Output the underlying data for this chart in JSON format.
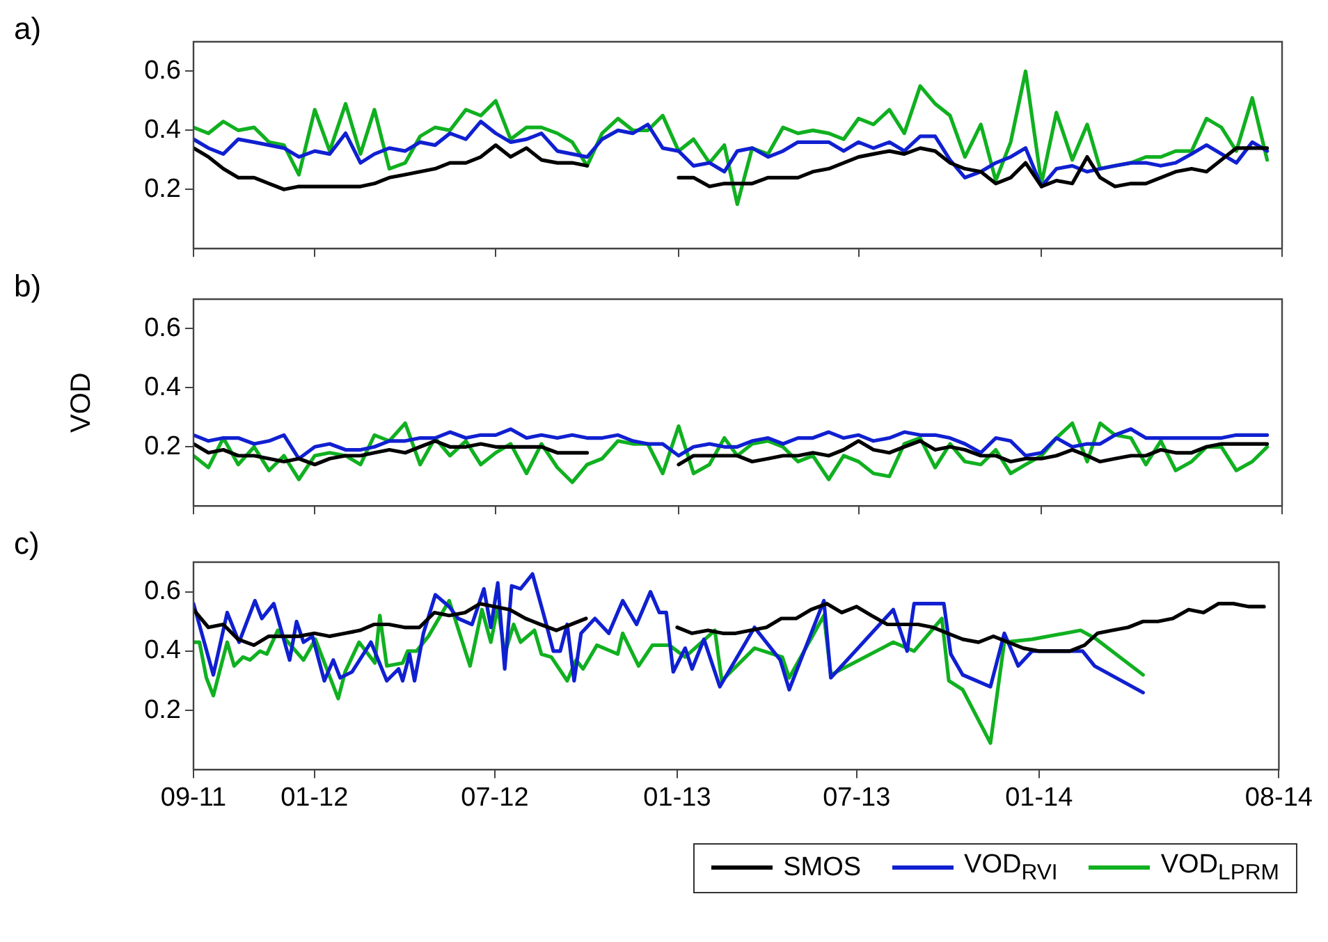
{
  "chart_data": [
    {
      "type": "line",
      "title": "a)",
      "x": [
        "2011-09-01",
        "2011-09-16",
        "2011-10-01",
        "2011-10-16",
        "2011-11-01",
        "2011-11-16",
        "2011-12-01",
        "2011-12-16",
        "2012-01-01",
        "2012-01-16",
        "2012-02-01",
        "2012-02-16",
        "2012-03-01",
        "2012-03-16",
        "2012-04-01",
        "2012-04-16",
        "2012-05-01",
        "2012-05-16",
        "2012-06-01",
        "2012-06-16",
        "2012-07-01",
        "2012-07-16",
        "2012-08-01",
        "2012-08-16",
        "2012-09-01",
        "2012-09-16",
        "2012-10-01",
        "2012-10-16",
        "2012-11-01",
        "2012-11-16",
        "2012-12-01",
        "2012-12-16",
        "2013-01-01",
        "2013-01-16",
        "2013-02-01",
        "2013-02-16",
        "2013-03-01",
        "2013-03-16",
        "2013-04-01",
        "2013-04-16",
        "2013-05-01",
        "2013-05-16",
        "2013-06-01",
        "2013-06-16",
        "2013-07-01",
        "2013-07-16",
        "2013-08-01",
        "2013-08-16",
        "2013-09-01",
        "2013-09-16",
        "2013-10-01",
        "2013-10-16",
        "2013-11-01",
        "2013-11-16",
        "2013-12-01",
        "2013-12-16",
        "2014-01-01",
        "2014-01-16",
        "2014-02-01",
        "2014-02-16",
        "2014-03-01",
        "2014-03-16",
        "2014-04-01",
        "2014-04-16",
        "2014-05-01",
        "2014-05-16",
        "2014-06-01",
        "2014-06-16",
        "2014-07-01",
        "2014-07-16",
        "2014-08-01",
        "2014-08-16"
      ],
      "series": [
        {
          "color": "#000000",
          "values": [
            0.34,
            0.31,
            0.27,
            0.24,
            0.24,
            0.22,
            0.2,
            0.21,
            0.21,
            0.21,
            0.21,
            0.21,
            0.22,
            0.24,
            0.25,
            0.26,
            0.27,
            0.29,
            0.29,
            0.31,
            0.35,
            0.31,
            0.34,
            0.3,
            0.29,
            0.29,
            0.28,
            null,
            null,
            null,
            null,
            null,
            0.24,
            0.24,
            0.21,
            0.22,
            0.22,
            0.22,
            0.24,
            0.24,
            0.24,
            0.26,
            0.27,
            0.29,
            0.31,
            0.32,
            0.33,
            0.32,
            0.34,
            0.33,
            0.29,
            0.27,
            0.26,
            0.22,
            0.24,
            0.29,
            0.21,
            0.23,
            0.22,
            0.31,
            0.24,
            0.21,
            0.22,
            0.22,
            0.24,
            0.26,
            0.27,
            0.26,
            0.3,
            0.34,
            0.34,
            0.34
          ]
        },
        {
          "color": "#1020d0",
          "values": [
            0.37,
            0.34,
            0.32,
            0.37,
            0.36,
            0.35,
            0.34,
            0.31,
            0.33,
            0.32,
            0.39,
            0.29,
            0.32,
            0.34,
            0.33,
            0.36,
            0.35,
            0.39,
            0.37,
            0.43,
            0.39,
            0.36,
            0.37,
            0.39,
            0.33,
            0.32,
            0.31,
            0.37,
            0.4,
            0.39,
            0.42,
            0.34,
            0.33,
            0.28,
            0.29,
            0.26,
            0.33,
            0.34,
            0.31,
            0.33,
            0.36,
            0.36,
            0.36,
            0.33,
            0.36,
            0.34,
            0.36,
            0.33,
            0.38,
            0.38,
            0.3,
            0.24,
            0.26,
            0.29,
            0.31,
            0.34,
            0.21,
            0.27,
            0.28,
            0.26,
            0.27,
            0.28,
            0.29,
            0.29,
            0.28,
            0.29,
            0.32,
            0.35,
            0.32,
            0.29,
            0.36,
            0.33
          ]
        },
        {
          "color": "#10b020",
          "values": [
            0.41,
            0.39,
            0.43,
            0.4,
            0.41,
            0.36,
            0.35,
            0.25,
            0.47,
            0.33,
            0.49,
            0.32,
            0.47,
            0.27,
            0.29,
            0.38,
            0.41,
            0.4,
            0.47,
            0.45,
            0.5,
            0.37,
            0.41,
            0.41,
            0.39,
            0.36,
            0.28,
            0.39,
            0.44,
            0.4,
            0.4,
            0.45,
            0.33,
            0.37,
            0.29,
            0.35,
            0.15,
            0.34,
            0.32,
            0.41,
            0.39,
            0.4,
            0.39,
            0.37,
            0.44,
            0.42,
            0.47,
            0.39,
            0.55,
            0.49,
            0.45,
            0.31,
            0.42,
            0.23,
            0.36,
            0.6,
            0.22,
            0.46,
            0.3,
            0.42,
            0.27,
            0.28,
            0.29,
            0.31,
            0.31,
            0.33,
            0.33,
            0.44,
            0.41,
            0.33,
            0.51,
            0.3
          ]
        }
      ],
      "xlim": [
        "2011-09-01",
        "2014-08-31"
      ],
      "xticks": [
        {
          "value": "2011-09-01",
          "label": null
        },
        {
          "value": "2012-01-01",
          "label": null
        },
        {
          "value": "2012-07-01",
          "label": null
        },
        {
          "value": "2013-01-01",
          "label": null
        },
        {
          "value": "2013-07-01",
          "label": null
        },
        {
          "value": "2014-01-01",
          "label": null
        },
        {
          "value": "2014-08-31",
          "label": null
        }
      ],
      "ylim": [
        0,
        0.7
      ],
      "yticks": [
        0.2,
        0.4,
        0.6
      ],
      "tick_labels": "y"
    },
    {
      "type": "line",
      "title": "b)",
      "ylabel": "VOD",
      "x": [
        "2011-09-01",
        "2011-09-16",
        "2011-10-01",
        "2011-10-16",
        "2011-11-01",
        "2011-11-16",
        "2011-12-01",
        "2011-12-16",
        "2012-01-01",
        "2012-01-16",
        "2012-02-01",
        "2012-02-16",
        "2012-03-01",
        "2012-03-16",
        "2012-04-01",
        "2012-04-16",
        "2012-05-01",
        "2012-05-16",
        "2012-06-01",
        "2012-06-16",
        "2012-07-01",
        "2012-07-16",
        "2012-08-01",
        "2012-08-16",
        "2012-09-01",
        "2012-09-16",
        "2012-10-01",
        "2012-10-16",
        "2012-11-01",
        "2012-11-16",
        "2012-12-01",
        "2012-12-16",
        "2013-01-01",
        "2013-01-16",
        "2013-02-01",
        "2013-02-16",
        "2013-03-01",
        "2013-03-16",
        "2013-04-01",
        "2013-04-16",
        "2013-05-01",
        "2013-05-16",
        "2013-06-01",
        "2013-06-16",
        "2013-07-01",
        "2013-07-16",
        "2013-08-01",
        "2013-08-16",
        "2013-09-01",
        "2013-09-16",
        "2013-10-01",
        "2013-10-16",
        "2013-11-01",
        "2013-11-16",
        "2013-12-01",
        "2013-12-16",
        "2014-01-01",
        "2014-01-16",
        "2014-02-01",
        "2014-02-16",
        "2014-03-01",
        "2014-03-16",
        "2014-04-01",
        "2014-04-16",
        "2014-05-01",
        "2014-05-16",
        "2014-06-01",
        "2014-06-16",
        "2014-07-01",
        "2014-07-16",
        "2014-08-01",
        "2014-08-16"
      ],
      "series": [
        {
          "color": "#000000",
          "values": [
            0.21,
            0.18,
            0.19,
            0.17,
            0.17,
            0.16,
            0.15,
            0.16,
            0.14,
            0.16,
            0.17,
            0.17,
            0.18,
            0.19,
            0.18,
            0.2,
            0.22,
            0.2,
            0.2,
            0.21,
            0.2,
            0.2,
            0.2,
            0.2,
            0.18,
            0.18,
            0.18,
            null,
            null,
            null,
            null,
            null,
            0.14,
            0.17,
            0.17,
            0.17,
            0.17,
            0.15,
            0.16,
            0.17,
            0.17,
            0.18,
            0.17,
            0.19,
            0.22,
            0.19,
            0.18,
            0.2,
            0.22,
            0.19,
            0.2,
            0.19,
            0.17,
            0.17,
            0.15,
            0.16,
            0.16,
            0.17,
            0.19,
            0.17,
            0.15,
            0.16,
            0.17,
            0.17,
            0.19,
            0.18,
            0.18,
            0.2,
            0.21,
            0.21,
            0.21,
            0.21
          ]
        },
        {
          "color": "#1020d0",
          "values": [
            0.24,
            0.22,
            0.23,
            0.23,
            0.21,
            0.22,
            0.24,
            0.16,
            0.2,
            0.21,
            0.19,
            0.19,
            0.2,
            0.22,
            0.22,
            0.23,
            0.23,
            0.25,
            0.23,
            0.24,
            0.24,
            0.26,
            0.23,
            0.24,
            0.23,
            0.24,
            0.23,
            0.23,
            0.24,
            0.22,
            0.21,
            0.21,
            0.17,
            0.2,
            0.21,
            0.2,
            0.2,
            0.22,
            0.23,
            0.21,
            0.23,
            0.23,
            0.25,
            0.23,
            0.24,
            0.22,
            0.23,
            0.25,
            0.24,
            0.24,
            0.23,
            0.21,
            0.18,
            0.23,
            0.22,
            0.17,
            0.18,
            0.23,
            0.2,
            0.21,
            0.21,
            0.24,
            0.26,
            0.23,
            0.23,
            0.23,
            0.23,
            0.23,
            0.23,
            0.24,
            0.24,
            0.24
          ]
        },
        {
          "color": "#10b020",
          "values": [
            0.17,
            0.13,
            0.23,
            0.14,
            0.2,
            0.12,
            0.17,
            0.09,
            0.17,
            0.18,
            0.17,
            0.14,
            0.24,
            0.22,
            0.28,
            0.14,
            0.23,
            0.17,
            0.22,
            0.14,
            0.18,
            0.21,
            0.11,
            0.21,
            0.13,
            0.08,
            0.14,
            0.16,
            0.22,
            0.21,
            0.21,
            0.11,
            0.27,
            0.11,
            0.14,
            0.23,
            0.17,
            0.21,
            0.22,
            0.2,
            0.15,
            0.17,
            0.09,
            0.17,
            0.15,
            0.11,
            0.1,
            0.21,
            0.23,
            0.13,
            0.21,
            0.15,
            0.14,
            0.19,
            0.11,
            0.14,
            0.17,
            0.23,
            0.28,
            0.15,
            0.28,
            0.24,
            0.23,
            0.14,
            0.22,
            0.12,
            0.15,
            0.2,
            0.2,
            0.12,
            0.15,
            0.2
          ]
        }
      ],
      "xlim": [
        "2011-09-01",
        "2014-08-31"
      ],
      "xticks": [
        {
          "value": "2011-09-01",
          "label": null
        },
        {
          "value": "2012-01-01",
          "label": null
        },
        {
          "value": "2012-07-01",
          "label": null
        },
        {
          "value": "2013-01-01",
          "label": null
        },
        {
          "value": "2013-07-01",
          "label": null
        },
        {
          "value": "2014-01-01",
          "label": null
        },
        {
          "value": "2014-08-31",
          "label": null
        }
      ],
      "ylim": [
        0,
        0.7
      ],
      "yticks": [
        0.2,
        0.4,
        0.6
      ],
      "tick_labels": "y"
    },
    {
      "type": "line",
      "title": "c)",
      "x": [
        "2011-09-01",
        "2011-09-16",
        "2011-10-01",
        "2011-10-16",
        "2011-11-01",
        "2011-11-16",
        "2011-12-01",
        "2011-12-16",
        "2012-01-01",
        "2012-01-16",
        "2012-02-01",
        "2012-02-16",
        "2012-03-01",
        "2012-03-16",
        "2012-04-01",
        "2012-04-16",
        "2012-05-01",
        "2012-05-16",
        "2012-06-01",
        "2012-06-16",
        "2012-07-01",
        "2012-07-16",
        "2012-08-01",
        "2012-08-16",
        "2012-09-01",
        "2012-09-16",
        "2012-10-01",
        "2012-10-16",
        "2012-11-01",
        "2012-11-16",
        "2012-12-01",
        "2012-12-16",
        "2013-01-01",
        "2013-01-16",
        "2013-02-01",
        "2013-02-16",
        "2013-03-01",
        "2013-03-16",
        "2013-04-01",
        "2013-04-16",
        "2013-05-01",
        "2013-05-16",
        "2013-06-01",
        "2013-06-16",
        "2013-07-01",
        "2013-07-16",
        "2013-08-01",
        "2013-08-16",
        "2013-09-01",
        "2013-09-16",
        "2013-10-01",
        "2013-10-16",
        "2013-11-01",
        "2013-11-16",
        "2013-12-01",
        "2013-12-16",
        "2014-01-01",
        "2014-01-16",
        "2014-02-01",
        "2014-02-16",
        "2014-03-01",
        "2014-03-16",
        "2014-04-01",
        "2014-04-16",
        "2014-05-01",
        "2014-05-16",
        "2014-06-01",
        "2014-06-16",
        "2014-07-01",
        "2014-07-16",
        "2014-08-01",
        "2014-08-16"
      ],
      "series": [
        {
          "name": "SMOS",
          "color": "#000000",
          "values": [
            0.54,
            0.48,
            0.49,
            0.44,
            0.42,
            0.45,
            0.45,
            0.45,
            0.46,
            0.45,
            0.46,
            0.47,
            0.49,
            0.49,
            0.48,
            0.48,
            0.53,
            0.52,
            0.53,
            0.56,
            0.55,
            0.54,
            0.51,
            0.49,
            0.47,
            0.49,
            0.51,
            null,
            null,
            null,
            null,
            null,
            0.48,
            0.46,
            0.47,
            0.46,
            0.46,
            0.47,
            0.48,
            0.51,
            0.51,
            0.54,
            0.56,
            0.53,
            0.55,
            0.52,
            0.49,
            0.49,
            0.49,
            0.48,
            0.46,
            0.44,
            0.43,
            0.45,
            0.43,
            0.41,
            0.4,
            0.4,
            0.4,
            0.42,
            0.46,
            0.47,
            0.48,
            0.5,
            0.5,
            0.51,
            0.54,
            0.53,
            0.56,
            0.56,
            0.55,
            0.55
          ]
        },
        {
          "name": "VOD$_{RVI}$",
          "color": "#1020d0",
          "x": [
            "2011-09-01",
            "2011-09-21",
            "2011-10-05",
            "2011-10-17",
            "2011-11-02",
            "2011-11-09",
            "2011-11-21",
            "2011-12-07",
            "2011-12-14",
            "2011-12-21",
            "2011-12-30",
            "2012-01-11",
            "2012-01-20",
            "2012-01-27",
            "2012-02-08",
            "2012-02-27",
            "2012-03-14",
            "2012-03-26",
            "2012-03-30",
            "2012-04-06",
            "2012-04-11",
            "2012-04-20",
            "2012-05-02",
            "2012-05-16",
            "2012-05-25",
            "2012-06-08",
            "2012-06-20",
            "2012-06-27",
            "2012-07-04",
            "2012-07-11",
            "2012-07-18",
            "2012-07-27",
            "2012-08-08",
            "2012-08-22",
            "2012-08-29",
            "2012-09-05",
            "2012-09-12",
            "2012-09-19",
            "2012-09-26",
            "2012-10-10",
            "2012-10-24",
            "2012-11-07",
            "2012-11-21",
            "2012-12-05",
            "2012-12-14",
            "2012-12-21",
            "2012-12-28",
            "2013-01-09",
            "2013-01-16",
            "2013-01-28",
            "2013-02-13",
            "2013-03-20",
            "2013-04-15",
            "2013-04-24",
            "2013-05-29",
            "2013-06-05",
            "2013-08-07",
            "2013-08-21",
            "2013-08-28",
            "2013-09-27",
            "2013-10-04",
            "2013-10-16",
            "2013-11-13",
            "2013-11-27",
            "2013-12-11",
            "2013-12-25",
            "2014-02-14",
            "2014-02-26",
            "2014-04-16"
          ],
          "values": [
            0.56,
            0.32,
            0.53,
            0.43,
            0.57,
            0.51,
            0.56,
            0.37,
            0.5,
            0.43,
            0.45,
            0.3,
            0.37,
            0.31,
            0.33,
            0.43,
            0.3,
            0.34,
            0.3,
            0.39,
            0.3,
            0.46,
            0.59,
            0.55,
            0.51,
            0.49,
            0.61,
            0.48,
            0.63,
            0.34,
            0.62,
            0.61,
            0.66,
            0.49,
            0.4,
            0.4,
            0.49,
            0.3,
            0.46,
            0.51,
            0.46,
            0.57,
            0.49,
            0.6,
            0.53,
            0.53,
            0.33,
            0.41,
            0.34,
            0.44,
            0.28,
            0.48,
            0.37,
            0.27,
            0.57,
            0.31,
            0.54,
            0.4,
            0.56,
            0.56,
            0.39,
            0.32,
            0.28,
            0.46,
            0.35,
            0.4,
            0.4,
            0.35,
            0.26
          ]
        },
        {
          "name": "VOD$_{LPRM}$",
          "color": "#10b020",
          "x": [
            "2011-09-01",
            "2011-09-07",
            "2011-09-14",
            "2011-09-21",
            "2011-10-05",
            "2011-10-12",
            "2011-10-21",
            "2011-10-28",
            "2011-11-07",
            "2011-11-14",
            "2011-11-25",
            "2011-12-21",
            "2012-01-02",
            "2012-01-25",
            "2012-02-01",
            "2012-02-15",
            "2012-03-02",
            "2012-03-07",
            "2012-03-14",
            "2012-03-30",
            "2012-04-04",
            "2012-04-13",
            "2012-04-25",
            "2012-05-16",
            "2012-06-06",
            "2012-06-18",
            "2012-06-27",
            "2012-07-04",
            "2012-07-11",
            "2012-07-20",
            "2012-07-27",
            "2012-08-10",
            "2012-08-17",
            "2012-08-27",
            "2012-09-12",
            "2012-09-21",
            "2012-09-28",
            "2012-10-12",
            "2012-11-02",
            "2012-11-07",
            "2012-11-23",
            "2012-12-07",
            "2012-12-24",
            "2013-01-09",
            "2013-02-08",
            "2013-02-15",
            "2013-03-20",
            "2013-04-17",
            "2013-04-24",
            "2013-05-29",
            "2013-06-05",
            "2013-08-07",
            "2013-08-28",
            "2013-09-25",
            "2013-10-02",
            "2013-10-16",
            "2013-11-13",
            "2013-11-27",
            "2013-12-25",
            "2014-02-12",
            "2014-02-28",
            "2014-04-16"
          ],
          "values": [
            0.43,
            0.43,
            0.31,
            0.25,
            0.43,
            0.35,
            0.38,
            0.37,
            0.4,
            0.39,
            0.47,
            0.37,
            0.44,
            0.24,
            0.33,
            0.43,
            0.36,
            0.52,
            0.35,
            0.36,
            0.4,
            0.4,
            0.45,
            0.57,
            0.35,
            0.54,
            0.43,
            0.55,
            0.39,
            0.49,
            0.43,
            0.47,
            0.39,
            0.38,
            0.3,
            0.37,
            0.34,
            0.42,
            0.39,
            0.46,
            0.35,
            0.42,
            0.42,
            0.38,
            0.47,
            0.3,
            0.41,
            0.38,
            0.31,
            0.52,
            0.32,
            0.43,
            0.4,
            0.51,
            0.3,
            0.27,
            0.09,
            0.43,
            0.44,
            0.47,
            0.44,
            0.32
          ]
        }
      ],
      "xlim": [
        "2011-09-01",
        "2014-08-31"
      ],
      "xticks": [
        {
          "value": "2011-09-01",
          "label": "09-11"
        },
        {
          "value": "2012-01-01",
          "label": "01-12"
        },
        {
          "value": "2012-07-01",
          "label": "07-12"
        },
        {
          "value": "2013-01-01",
          "label": "01-13"
        },
        {
          "value": "2013-07-01",
          "label": "07-13"
        },
        {
          "value": "2014-01-01",
          "label": "01-14"
        },
        {
          "value": "2014-08-31",
          "label": "08-14"
        }
      ],
      "ylim": [
        0,
        0.7
      ],
      "yticks": [
        0.2,
        0.4,
        0.6
      ],
      "legend": "bottom right"
    }
  ]
}
